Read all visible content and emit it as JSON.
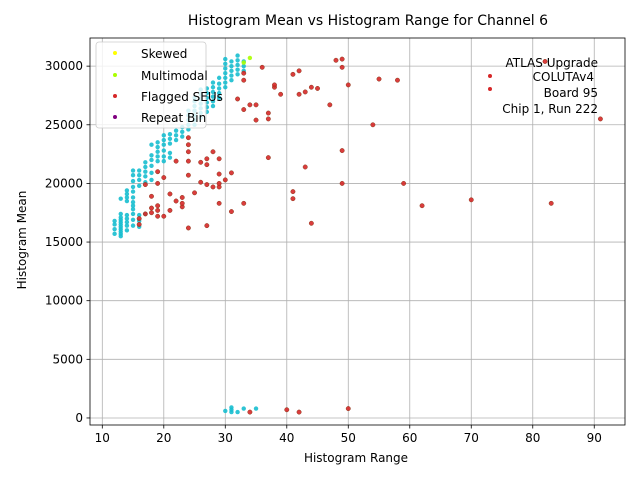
{
  "chart_data": {
    "type": "scatter",
    "title": "Histogram Mean vs Histogram Range for Channel 6",
    "xlabel": "Histogram Range",
    "ylabel": "Histogram Mean",
    "xlim": [
      8,
      95
    ],
    "ylim": [
      -600,
      32400
    ],
    "xticks": [
      10,
      20,
      30,
      40,
      50,
      60,
      70,
      80,
      90
    ],
    "yticks": [
      0,
      5000,
      10000,
      15000,
      20000,
      25000,
      30000
    ],
    "grid": true,
    "legend_position": "upper left",
    "legend": [
      "Skewed",
      "Multimodal",
      "Flagged SEUs",
      "Repeat Bin"
    ],
    "annotation": [
      "ATLAS Upgrade",
      "COLUTAv4",
      "Board 95",
      "Chip 1, Run 222"
    ],
    "series": [
      {
        "color": "#17becf",
        "points": [
          [
            12,
            15700
          ],
          [
            12,
            16100
          ],
          [
            12,
            16500
          ],
          [
            12,
            16800
          ],
          [
            13,
            15500
          ],
          [
            13,
            15700
          ],
          [
            13,
            15900
          ],
          [
            13,
            16100
          ],
          [
            13,
            16300
          ],
          [
            13,
            16500
          ],
          [
            13,
            16700
          ],
          [
            13,
            16900
          ],
          [
            13,
            17100
          ],
          [
            13,
            17400
          ],
          [
            13,
            18700
          ],
          [
            14,
            16000
          ],
          [
            14,
            16400
          ],
          [
            14,
            16700
          ],
          [
            14,
            17000
          ],
          [
            14,
            17300
          ],
          [
            14,
            18500
          ],
          [
            14,
            18800
          ],
          [
            14,
            19100
          ],
          [
            14,
            19400
          ],
          [
            15,
            16400
          ],
          [
            15,
            16900
          ],
          [
            15,
            17400
          ],
          [
            15,
            17800
          ],
          [
            15,
            18100
          ],
          [
            15,
            18400
          ],
          [
            15,
            18800
          ],
          [
            15,
            19300
          ],
          [
            15,
            19700
          ],
          [
            15,
            20200
          ],
          [
            15,
            20700
          ],
          [
            15,
            21100
          ],
          [
            16,
            16300
          ],
          [
            16,
            16800
          ],
          [
            16,
            17300
          ],
          [
            16,
            19800
          ],
          [
            16,
            20300
          ],
          [
            16,
            20700
          ],
          [
            16,
            21100
          ],
          [
            17,
            17400
          ],
          [
            17,
            20100
          ],
          [
            17,
            20600
          ],
          [
            17,
            21000
          ],
          [
            17,
            21400
          ],
          [
            17,
            21800
          ],
          [
            18,
            20300
          ],
          [
            18,
            20900
          ],
          [
            18,
            21500
          ],
          [
            18,
            22000
          ],
          [
            18,
            22400
          ],
          [
            18,
            23300
          ],
          [
            19,
            21900
          ],
          [
            19,
            22300
          ],
          [
            19,
            22700
          ],
          [
            19,
            23100
          ],
          [
            19,
            23500
          ],
          [
            20,
            21900
          ],
          [
            20,
            22300
          ],
          [
            20,
            22800
          ],
          [
            20,
            23300
          ],
          [
            20,
            23700
          ],
          [
            20,
            24100
          ],
          [
            21,
            22200
          ],
          [
            21,
            22600
          ],
          [
            21,
            23400
          ],
          [
            21,
            23800
          ],
          [
            21,
            24200
          ],
          [
            22,
            23700
          ],
          [
            22,
            24100
          ],
          [
            22,
            24500
          ],
          [
            23,
            24000
          ],
          [
            23,
            24400
          ],
          [
            23,
            24800
          ],
          [
            24,
            24600
          ],
          [
            24,
            25000
          ],
          [
            24,
            25400
          ],
          [
            24,
            25800
          ],
          [
            24,
            26200
          ],
          [
            25,
            25000
          ],
          [
            25,
            25400
          ],
          [
            25,
            25800
          ],
          [
            25,
            26200
          ],
          [
            25,
            26600
          ],
          [
            25,
            27000
          ],
          [
            25,
            27300
          ],
          [
            26,
            25600
          ],
          [
            26,
            26000
          ],
          [
            26,
            26400
          ],
          [
            26,
            26800
          ],
          [
            26,
            27200
          ],
          [
            26,
            27600
          ],
          [
            26,
            28000
          ],
          [
            27,
            26100
          ],
          [
            27,
            26500
          ],
          [
            27,
            26900
          ],
          [
            27,
            27300
          ],
          [
            27,
            27700
          ],
          [
            27,
            28100
          ],
          [
            28,
            26600
          ],
          [
            28,
            27000
          ],
          [
            28,
            27400
          ],
          [
            28,
            27800
          ],
          [
            28,
            28200
          ],
          [
            28,
            28600
          ],
          [
            29,
            27300
          ],
          [
            29,
            27700
          ],
          [
            29,
            28100
          ],
          [
            29,
            28500
          ],
          [
            29,
            29000
          ],
          [
            30,
            28200
          ],
          [
            30,
            28600
          ],
          [
            30,
            29000
          ],
          [
            30,
            29400
          ],
          [
            30,
            29800
          ],
          [
            30,
            30200
          ],
          [
            30,
            30600
          ],
          [
            31,
            28800
          ],
          [
            31,
            29200
          ],
          [
            31,
            29600
          ],
          [
            31,
            30000
          ],
          [
            31,
            30400
          ],
          [
            32,
            29300
          ],
          [
            32,
            29700
          ],
          [
            32,
            30100
          ],
          [
            32,
            30500
          ],
          [
            32,
            30900
          ],
          [
            33,
            29600
          ],
          [
            33,
            30000
          ],
          [
            33,
            30400
          ],
          [
            30,
            600
          ],
          [
            31,
            500
          ],
          [
            31,
            700
          ],
          [
            31,
            900
          ],
          [
            32,
            500
          ],
          [
            33,
            800
          ],
          [
            35,
            800
          ]
        ]
      },
      {
        "color": "#d62728",
        "points": [
          [
            16,
            16500
          ],
          [
            16,
            17000
          ],
          [
            17,
            17400
          ],
          [
            17,
            19900
          ],
          [
            18,
            17500
          ],
          [
            18,
            17900
          ],
          [
            18,
            18900
          ],
          [
            19,
            17200
          ],
          [
            19,
            17700
          ],
          [
            19,
            18100
          ],
          [
            19,
            20000
          ],
          [
            19,
            21000
          ],
          [
            20,
            17200
          ],
          [
            20,
            20500
          ],
          [
            21,
            17700
          ],
          [
            21,
            19100
          ],
          [
            22,
            18500
          ],
          [
            22,
            21900
          ],
          [
            23,
            18000
          ],
          [
            23,
            18300
          ],
          [
            23,
            18800
          ],
          [
            24,
            16200
          ],
          [
            24,
            20700
          ],
          [
            24,
            21900
          ],
          [
            24,
            22700
          ],
          [
            24,
            23300
          ],
          [
            24,
            23900
          ],
          [
            25,
            19200
          ],
          [
            26,
            20100
          ],
          [
            26,
            21800
          ],
          [
            27,
            16400
          ],
          [
            27,
            19900
          ],
          [
            27,
            21600
          ],
          [
            27,
            22100
          ],
          [
            28,
            19700
          ],
          [
            28,
            22700
          ],
          [
            29,
            18300
          ],
          [
            29,
            19700
          ],
          [
            29,
            20000
          ],
          [
            29,
            20800
          ],
          [
            29,
            22100
          ],
          [
            30,
            20300
          ],
          [
            31,
            17600
          ],
          [
            31,
            20900
          ],
          [
            32,
            27200
          ],
          [
            33,
            18300
          ],
          [
            33,
            26300
          ],
          [
            33,
            28800
          ],
          [
            33,
            29400
          ],
          [
            34,
            26700
          ],
          [
            35,
            25400
          ],
          [
            35,
            26700
          ],
          [
            36,
            29900
          ],
          [
            37,
            22200
          ],
          [
            37,
            25500
          ],
          [
            37,
            26000
          ],
          [
            38,
            28200
          ],
          [
            38,
            28400
          ],
          [
            39,
            27600
          ],
          [
            41,
            18700
          ],
          [
            41,
            19300
          ],
          [
            41,
            29300
          ],
          [
            42,
            27600
          ],
          [
            42,
            29600
          ],
          [
            43,
            21400
          ],
          [
            43,
            27800
          ],
          [
            44,
            16600
          ],
          [
            44,
            28200
          ],
          [
            45,
            28100
          ],
          [
            47,
            26700
          ],
          [
            48,
            30500
          ],
          [
            49,
            20000
          ],
          [
            49,
            22800
          ],
          [
            49,
            30600
          ],
          [
            49,
            29900
          ],
          [
            50,
            28400
          ],
          [
            54,
            25000
          ],
          [
            55,
            28900
          ],
          [
            58,
            28800
          ],
          [
            59,
            20000
          ],
          [
            62,
            18100
          ],
          [
            70,
            18600
          ],
          [
            82,
            30400
          ],
          [
            83,
            18300
          ],
          [
            91,
            25500
          ],
          [
            34,
            500
          ],
          [
            40,
            700
          ],
          [
            42,
            500
          ],
          [
            50,
            800
          ]
        ]
      },
      {
        "color": "#aaff00",
        "points": [
          [
            33,
            30300
          ],
          [
            34,
            30700
          ]
        ]
      },
      {
        "color": "#ffff00",
        "points": []
      }
    ]
  }
}
